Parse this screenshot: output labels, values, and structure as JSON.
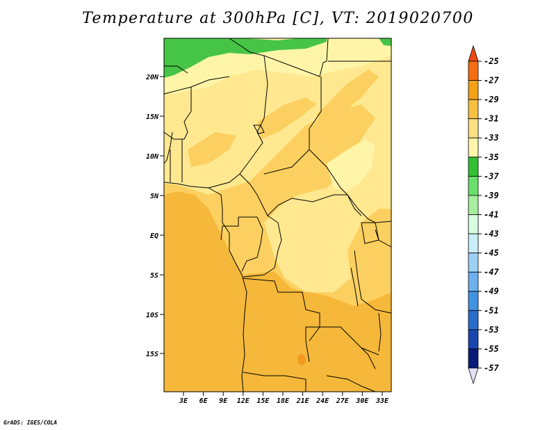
{
  "title": "Temperature at 300hPa [C], VT: 2019020700",
  "credit": "GrADS: IGES/COLA",
  "lat_labels": [
    "20N",
    "15N",
    "10N",
    "5N",
    "EQ",
    "5S",
    "10S",
    "15S"
  ],
  "lon_labels": [
    "3E",
    "6E",
    "9E",
    "12E",
    "15E",
    "18E",
    "21E",
    "24E",
    "27E",
    "30E",
    "33E"
  ],
  "colorbar": {
    "labels": [
      "-25",
      "-27",
      "-29",
      "-31",
      "-33",
      "-35",
      "-37",
      "-39",
      "-41",
      "-43",
      "-45",
      "-47",
      "-49",
      "-51",
      "-53",
      "-55",
      "-57"
    ],
    "colors": [
      "#f04a14",
      "#f46e12",
      "#f5a015",
      "#f8c040",
      "#fce080",
      "#fff5a8",
      "#32c032",
      "#6ae06a",
      "#a8eea0",
      "#d8fce0",
      "#c8eef8",
      "#9cd0f4",
      "#6cb0ee",
      "#4292e4",
      "#2a6ccc",
      "#1846b0",
      "#0a1a78",
      "#e0e0f8"
    ],
    "legend_colors": {
      "fill_minus29": "#f5b83a",
      "fill_minus31": "#fcd060",
      "fill_minus33": "#ffe890",
      "fill_minus35": "#fff5a8",
      "fill_minus37": "#46c446"
    }
  }
}
